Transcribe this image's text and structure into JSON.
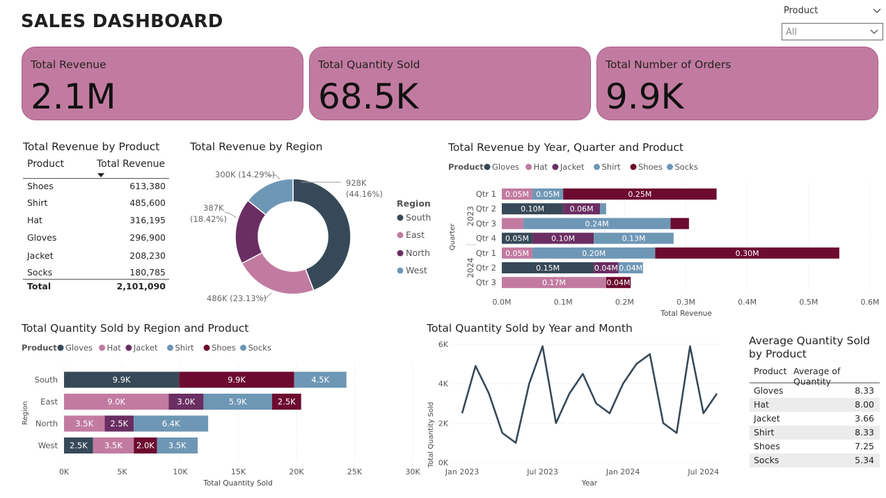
{
  "header": {
    "title": "SALES DASHBOARD"
  },
  "slicer": {
    "label": "Product",
    "value": "All"
  },
  "cards": [
    {
      "label": "Total Revenue",
      "value": "2.1M"
    },
    {
      "label": "Total Quantity Sold",
      "value": "68.5K"
    },
    {
      "label": "Total Number of Orders",
      "value": "9.9K"
    }
  ],
  "colors": {
    "Gloves": "#374958",
    "Hat": "#c27ba0",
    "Jacket": "#6a2e62",
    "Shirt": "#6e97b5",
    "Shoes": "#6d0a2f",
    "Socks": "#6e97b5",
    "card_bg": "#c27ba0"
  },
  "revenue_table": {
    "title": "Total Revenue by Product",
    "col1": "Product",
    "col2": "Total Revenue",
    "rows": [
      {
        "product": "Shoes",
        "revenue": "613,380"
      },
      {
        "product": "Shirt",
        "revenue": "485,600"
      },
      {
        "product": "Hat",
        "revenue": "316,195"
      },
      {
        "product": "Gloves",
        "revenue": "296,900"
      },
      {
        "product": "Jacket",
        "revenue": "208,230"
      },
      {
        "product": "Socks",
        "revenue": "180,785"
      }
    ],
    "total_label": "Total",
    "total_value": "2,101,090"
  },
  "avg_table": {
    "title": "Average Quantity Sold by Product",
    "col1": "Product",
    "col2": "Average of Quantity",
    "rows": [
      {
        "product": "Gloves",
        "avg": "8.33"
      },
      {
        "product": "Hat",
        "avg": "8.00"
      },
      {
        "product": "Jacket",
        "avg": "3.66"
      },
      {
        "product": "Shirt",
        "avg": "8.33"
      },
      {
        "product": "Shoes",
        "avg": "7.25"
      },
      {
        "product": "Socks",
        "avg": "5.34"
      }
    ]
  },
  "chart_data": [
    {
      "type": "pie",
      "title": "Total Revenue by Region",
      "legend_title": "Region",
      "legend": [
        "South",
        "East",
        "North",
        "West"
      ],
      "slices": [
        {
          "name": "South",
          "value": 928,
          "label": "928K",
          "pct": "(44.16%)",
          "color": "#374958"
        },
        {
          "name": "East",
          "value": 486,
          "label": "486K (23.13%)",
          "color": "#c27ba0"
        },
        {
          "name": "North",
          "value": 387,
          "label": "387K",
          "pct": "(18.42%)",
          "color": "#6a2e62"
        },
        {
          "name": "West",
          "value": 300,
          "label": "300K (14.29%)",
          "color": "#6e97b5"
        }
      ]
    },
    {
      "type": "bar",
      "title": "Total Revenue by Year, Quarter and Product",
      "legend_title": "Product",
      "legend": [
        "Gloves",
        "Hat",
        "Jacket",
        "Shirt",
        "Shoes",
        "Socks"
      ],
      "xlabel": "Total Revenue",
      "ylabel": "Quarter",
      "xlim": [
        0,
        0.6
      ],
      "xticks": [
        "0.0M",
        "0.1M",
        "0.2M",
        "0.3M",
        "0.4M",
        "0.5M",
        "0.6M"
      ],
      "years": [
        "2023",
        "2024"
      ],
      "rows": [
        {
          "year": "2023",
          "label": "Qtr 1",
          "segments": [
            {
              "product": "Hat",
              "value": 0.05,
              "label": "0.05M"
            },
            {
              "product": "Shirt",
              "value": 0.05,
              "label": "0.05M"
            },
            {
              "product": "Shoes",
              "value": 0.25,
              "label": "0.25M"
            }
          ]
        },
        {
          "year": "2023",
          "label": "Qtr 2",
          "segments": [
            {
              "product": "Gloves",
              "value": 0.1,
              "label": "0.10M"
            },
            {
              "product": "Jacket",
              "value": 0.06,
              "label": "0.06M"
            },
            {
              "product": "Socks",
              "value": 0.01,
              "label": ""
            }
          ]
        },
        {
          "year": "2023",
          "label": "Qtr 3",
          "segments": [
            {
              "product": "Hat",
              "value": 0.035,
              "label": ""
            },
            {
              "product": "Shirt",
              "value": 0.24,
              "label": "0.24M"
            },
            {
              "product": "Shoes",
              "value": 0.03,
              "label": ""
            }
          ]
        },
        {
          "year": "2023",
          "label": "Qtr 4",
          "segments": [
            {
              "product": "Gloves",
              "value": 0.05,
              "label": "0.05M"
            },
            {
              "product": "Jacket",
              "value": 0.1,
              "label": "0.10M"
            },
            {
              "product": "Socks",
              "value": 0.13,
              "label": "0.13M"
            }
          ]
        },
        {
          "year": "2024",
          "label": "Qtr 1",
          "segments": [
            {
              "product": "Hat",
              "value": 0.05,
              "label": "0.05M"
            },
            {
              "product": "Shirt",
              "value": 0.2,
              "label": "0.20M"
            },
            {
              "product": "Shoes",
              "value": 0.3,
              "label": "0.30M"
            }
          ]
        },
        {
          "year": "2024",
          "label": "Qtr 2",
          "segments": [
            {
              "product": "Gloves",
              "value": 0.15,
              "label": "0.15M"
            },
            {
              "product": "Jacket",
              "value": 0.04,
              "label": "0.04M"
            },
            {
              "product": "Socks",
              "value": 0.04,
              "label": "0.04M"
            }
          ]
        },
        {
          "year": "2024",
          "label": "Qtr 3",
          "segments": [
            {
              "product": "Hat",
              "value": 0.17,
              "label": "0.17M"
            },
            {
              "product": "Shoes",
              "value": 0.04,
              "label": "0.04M"
            }
          ]
        }
      ]
    },
    {
      "type": "bar",
      "title": "Total Quantity Sold by Region and Product",
      "legend_title": "Product",
      "legend": [
        "Gloves",
        "Hat",
        "Jacket",
        "Shirt",
        "Shoes",
        "Socks"
      ],
      "xlabel": "Total Quantity Sold",
      "ylabel": "Region",
      "xlim": [
        0,
        30000
      ],
      "xticks": [
        "0K",
        "5K",
        "10K",
        "15K",
        "20K",
        "25K",
        "30K"
      ],
      "rows": [
        {
          "label": "South",
          "segments": [
            {
              "product": "Gloves",
              "value": 9900,
              "label": "9.9K"
            },
            {
              "product": "Shoes",
              "value": 9900,
              "label": "9.9K"
            },
            {
              "product": "Socks",
              "value": 4500,
              "label": "4.5K"
            }
          ]
        },
        {
          "label": "East",
          "segments": [
            {
              "product": "Hat",
              "value": 9000,
              "label": "9.0K"
            },
            {
              "product": "Jacket",
              "value": 3000,
              "label": "3.0K"
            },
            {
              "product": "Shirt",
              "value": 5900,
              "label": "5.9K"
            },
            {
              "product": "Shoes",
              "value": 2500,
              "label": "2.5K"
            }
          ]
        },
        {
          "label": "North",
          "segments": [
            {
              "product": "Hat",
              "value": 3500,
              "label": "3.5K"
            },
            {
              "product": "Jacket",
              "value": 2500,
              "label": "2.5K"
            },
            {
              "product": "Shirt",
              "value": 6400,
              "label": "6.4K"
            }
          ]
        },
        {
          "label": "West",
          "segments": [
            {
              "product": "Gloves",
              "value": 2500,
              "label": "2.5K"
            },
            {
              "product": "Hat",
              "value": 3500,
              "label": "3.5K"
            },
            {
              "product": "Shoes",
              "value": 2000,
              "label": "2.0K"
            },
            {
              "product": "Socks",
              "value": 3500,
              "label": "3.5K"
            }
          ]
        }
      ]
    },
    {
      "type": "line",
      "title": "Total Quantity Sold by Year and Month",
      "xlabel": "Year",
      "ylabel": "Total Quantity Sold",
      "ylim": [
        0,
        6000
      ],
      "yticks": [
        "0K",
        "2K",
        "4K",
        "6K"
      ],
      "xticks": [
        "Jan 2023",
        "Jul 2023",
        "Jan 2024",
        "Jul 2024"
      ],
      "x": [
        "Jan 2023",
        "Feb 2023",
        "Mar 2023",
        "Apr 2023",
        "May 2023",
        "Jun 2023",
        "Jul 2023",
        "Aug 2023",
        "Sep 2023",
        "Oct 2023",
        "Nov 2023",
        "Dec 2023",
        "Jan 2024",
        "Feb 2024",
        "Mar 2024",
        "Apr 2024",
        "May 2024",
        "Jun 2024",
        "Jul 2024",
        "Aug 2024"
      ],
      "series": [
        {
          "values": [
            2500,
            4900,
            3500,
            1500,
            1000,
            4000,
            5900,
            2000,
            3500,
            4500,
            3000,
            2500,
            4000,
            5000,
            5500,
            2000,
            1500,
            5900,
            2500,
            3500
          ]
        }
      ]
    }
  ]
}
